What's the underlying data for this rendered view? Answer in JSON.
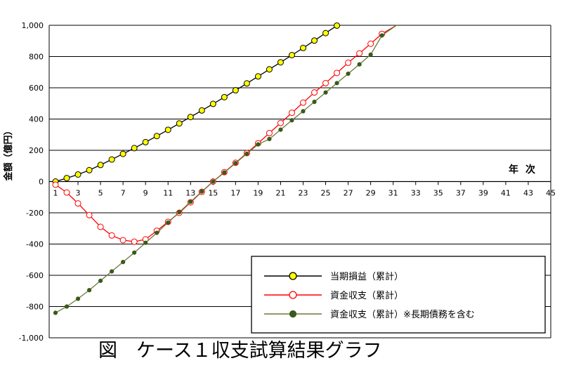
{
  "chart_data": {
    "type": "line",
    "caption": "図　ケース１収支試算結果グラフ",
    "ylabel": "金額（億円）",
    "xlabel": "年次",
    "ylim": [
      -1000,
      1000
    ],
    "xlim": [
      1,
      45
    ],
    "y_ticks": [
      "1,000",
      "800",
      "600",
      "400",
      "200",
      "0",
      "-200",
      "-400",
      "-600",
      "-800",
      "-1,000"
    ],
    "x_ticks": [
      "1",
      "3",
      "5",
      "7",
      "9",
      "11",
      "13",
      "15",
      "17",
      "19",
      "21",
      "23",
      "25",
      "27",
      "29",
      "31",
      "33",
      "35",
      "37",
      "39",
      "41",
      "43",
      "45"
    ],
    "grid": true,
    "legend_position": "bottom-right",
    "series": [
      {
        "name": "当期損益（累計）",
        "color": "#000000",
        "marker_fill": "#ffff00",
        "marker_stroke": "#000000",
        "x": [
          1,
          2,
          3,
          4,
          5,
          6,
          7,
          8,
          9,
          10,
          11,
          12,
          13,
          14,
          15,
          16,
          17,
          18,
          19,
          20,
          21,
          22,
          23,
          24,
          25,
          26
        ],
        "y": [
          0,
          22,
          45,
          73,
          106,
          141,
          177,
          214,
          252,
          291,
          331,
          372,
          413,
          455,
          497,
          540,
          584,
          628,
          673,
          718,
          763,
          809,
          855,
          902,
          950,
          998
        ]
      },
      {
        "name": "資金収支（累計）",
        "color": "#ff0000",
        "marker_fill": "#ffffff",
        "marker_stroke": "#ff0000",
        "x": [
          1,
          2,
          3,
          4,
          5,
          6,
          7,
          8,
          9,
          10,
          11,
          12,
          13,
          14,
          15,
          16,
          17,
          18,
          19,
          20,
          21,
          22,
          23,
          24,
          25,
          26,
          27,
          28,
          29,
          30
        ],
        "y": [
          -20,
          -70,
          -140,
          -215,
          -290,
          -345,
          -375,
          -385,
          -370,
          -315,
          -258,
          -200,
          -133,
          -66,
          0,
          60,
          120,
          182,
          245,
          310,
          375,
          440,
          505,
          570,
          630,
          695,
          760,
          820,
          882,
          945
        ]
      },
      {
        "name": "資金収支（累計）※長期債務を含む",
        "color": "#6b7a3a",
        "marker_fill": "#3a5a1a",
        "marker_stroke": "#3a5a1a",
        "x": [
          1,
          2,
          3,
          4,
          5,
          6,
          7,
          8,
          9,
          10,
          11,
          12,
          13,
          14,
          15,
          16,
          17,
          18,
          19,
          20,
          21,
          22,
          23,
          24,
          25,
          26,
          27,
          28,
          29,
          30
        ],
        "y": [
          -840,
          -800,
          -750,
          -695,
          -635,
          -575,
          -515,
          -455,
          -392,
          -328,
          -262,
          -196,
          -130,
          -64,
          0,
          58,
          118,
          178,
          238,
          272,
          332,
          392,
          450,
          510,
          570,
          630,
          690,
          750,
          812,
          935
        ]
      }
    ]
  }
}
